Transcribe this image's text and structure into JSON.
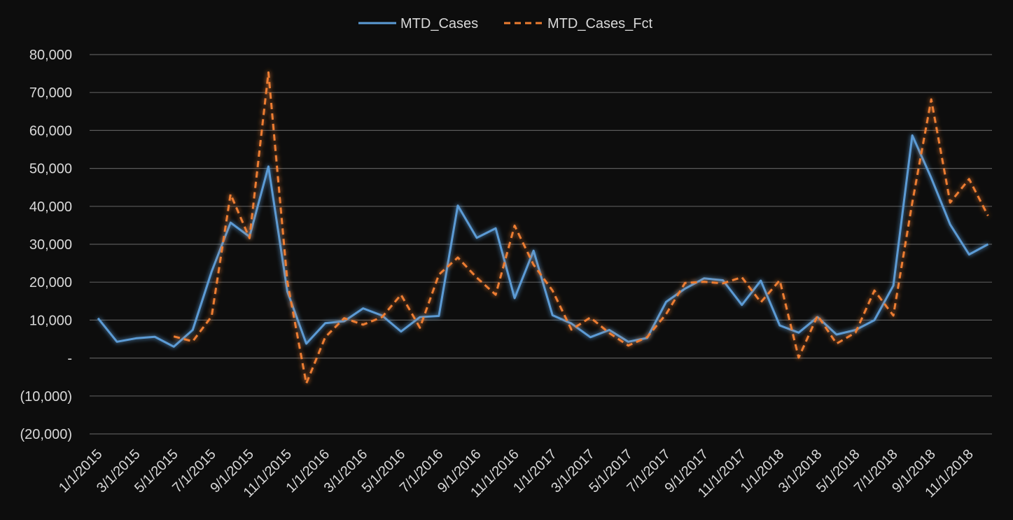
{
  "chart_data": {
    "type": "line",
    "title": "",
    "xlabel": "",
    "ylabel": "",
    "ylim": [
      -20000,
      80000
    ],
    "y_ticks": [
      80000,
      70000,
      60000,
      50000,
      40000,
      30000,
      20000,
      10000,
      0,
      -10000,
      -20000
    ],
    "y_tick_labels": [
      "80,000",
      "70,000",
      "60,000",
      "50,000",
      "40,000",
      "30,000",
      "20,000",
      "10,000",
      "-",
      "(10,000)",
      "(20,000)"
    ],
    "x_tick_labels": [
      "1/1/2015",
      "3/1/2015",
      "5/1/2015",
      "7/1/2015",
      "9/1/2015",
      "11/1/2015",
      "1/1/2016",
      "3/1/2016",
      "5/1/2016",
      "7/1/2016",
      "9/1/2016",
      "11/1/2016",
      "1/1/2017",
      "3/1/2017",
      "5/1/2017",
      "7/1/2017",
      "9/1/2017",
      "11/1/2017",
      "1/1/2018",
      "3/1/2018",
      "5/1/2018",
      "7/1/2018",
      "9/1/2018",
      "11/1/2018"
    ],
    "grid": true,
    "legend_position": "top",
    "x": [
      "2015-01",
      "2015-02",
      "2015-03",
      "2015-04",
      "2015-05",
      "2015-06",
      "2015-07",
      "2015-08",
      "2015-09",
      "2015-10",
      "2015-11",
      "2015-12",
      "2016-01",
      "2016-02",
      "2016-03",
      "2016-04",
      "2016-05",
      "2016-06",
      "2016-07",
      "2016-08",
      "2016-09",
      "2016-10",
      "2016-11",
      "2016-12",
      "2017-01",
      "2017-02",
      "2017-03",
      "2017-04",
      "2017-05",
      "2017-06",
      "2017-07",
      "2017-08",
      "2017-09",
      "2017-10",
      "2017-11",
      "2017-12",
      "2018-01",
      "2018-02",
      "2018-03",
      "2018-04",
      "2018-05",
      "2018-06",
      "2018-07",
      "2018-08",
      "2018-09",
      "2018-10",
      "2018-11",
      "2018-12"
    ],
    "series": [
      {
        "name": "MTD_Cases",
        "color": "#5b9bd5",
        "dash": "solid",
        "values": [
          10500,
          4300,
          5200,
          5600,
          3000,
          7400,
          22800,
          35700,
          32000,
          50500,
          17500,
          3800,
          9200,
          9700,
          13100,
          11200,
          7000,
          10800,
          11100,
          40200,
          31700,
          34200,
          15800,
          28300,
          11300,
          9100,
          5500,
          7400,
          4300,
          5300,
          14800,
          18300,
          21000,
          20500,
          14000,
          20400,
          8600,
          6700,
          10800,
          6200,
          7400,
          10000,
          19100,
          58700,
          47500,
          35200,
          27300,
          30000
        ]
      },
      {
        "name": "MTD_Cases_Fct",
        "color": "#ed7d31",
        "dash": "dashed",
        "values": [
          null,
          null,
          null,
          null,
          5700,
          4400,
          11000,
          43200,
          31600,
          75300,
          20100,
          -6700,
          5500,
          10500,
          8800,
          10800,
          16700,
          8000,
          22000,
          26500,
          21200,
          16700,
          34900,
          24600,
          17800,
          7500,
          10700,
          6600,
          3300,
          5500,
          11600,
          19800,
          20100,
          19700,
          21300,
          14700,
          20500,
          100,
          11200,
          3800,
          6700,
          17800,
          11200,
          41000,
          68200,
          41000,
          47200,
          37500
        ]
      }
    ]
  }
}
